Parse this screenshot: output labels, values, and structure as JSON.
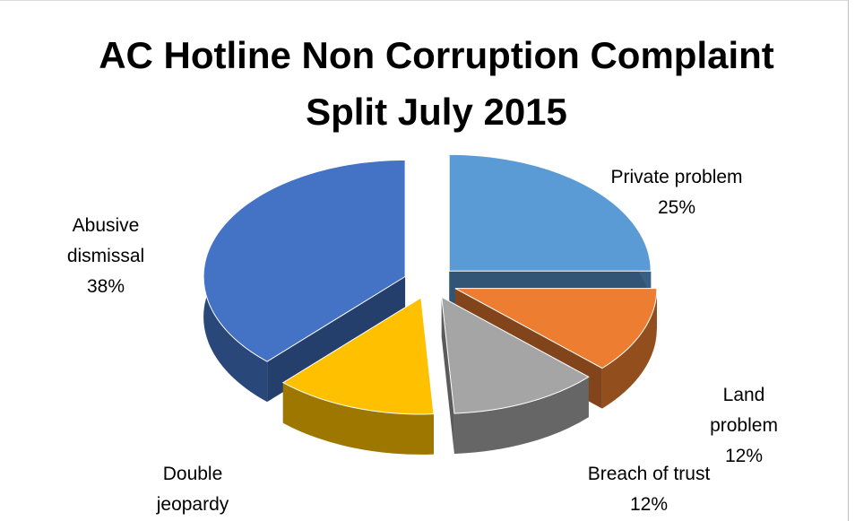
{
  "chart_data": {
    "type": "pie3d",
    "title": "AC Hotline Non Corruption Complaint Split July 2015",
    "categories": [
      "Private problem",
      "Land problem",
      "Breach of trust",
      "Double jeopardy",
      "Abusive dismissal"
    ],
    "values": [
      25,
      12,
      12,
      13,
      38
    ],
    "value_labels": [
      "25%",
      "12%",
      "12%",
      null,
      "38%"
    ],
    "colors": [
      "#5b9bd5",
      "#ed7d31",
      "#a5a5a5",
      "#ffc000",
      "#4472c4"
    ]
  }
}
